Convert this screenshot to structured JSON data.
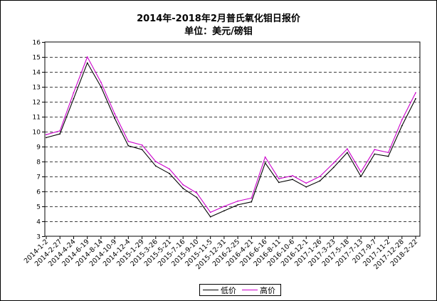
{
  "chart_data": {
    "type": "line",
    "title": "2014年-2018年2月普氏氧化钼日报价",
    "subtitle": "单位：美元/磅钼",
    "ylim": [
      3,
      16
    ],
    "yticks": [
      3,
      4,
      5,
      6,
      7,
      8,
      9,
      10,
      11,
      12,
      13,
      14,
      15,
      16
    ],
    "grid": "horizontal-dashed",
    "legend_position": "bottom-center",
    "x": [
      "2014-1-2",
      "2014-2-27",
      "2014-4-24",
      "2014-6-19",
      "2014-8-14",
      "2014-10-9",
      "2014-12-4",
      "2015-1-29",
      "2015-3-26",
      "2015-5-21",
      "2015-7-16",
      "2015-9-10",
      "2015-11-5",
      "2015-12-31",
      "2016-2-25",
      "2016-4-21",
      "2016-6-16",
      "2016-8-11",
      "2016-10-6",
      "2016-12-1",
      "2017-1-26",
      "2017-3-23",
      "2017-5-18",
      "2017-7-13",
      "2017-9-7",
      "2017-11-2",
      "2017-12-28",
      "2018-2-22"
    ],
    "series": [
      {
        "name": "低价",
        "color": "#000000",
        "values": [
          9.6,
          9.85,
          12.2,
          14.6,
          13.0,
          10.9,
          9.05,
          8.8,
          7.7,
          7.2,
          6.2,
          5.6,
          4.3,
          4.7,
          5.1,
          5.3,
          7.9,
          6.6,
          6.8,
          6.3,
          6.7,
          7.6,
          8.6,
          7.0,
          8.5,
          8.35,
          10.4,
          12.2
        ]
      },
      {
        "name": "高价",
        "color": "#cc00cc",
        "values": [
          9.8,
          10.05,
          12.6,
          15.0,
          13.3,
          11.2,
          9.35,
          9.1,
          8.0,
          7.5,
          6.45,
          5.9,
          4.6,
          5.0,
          5.35,
          5.55,
          8.3,
          6.85,
          7.05,
          6.55,
          7.0,
          7.9,
          8.85,
          7.3,
          8.8,
          8.6,
          10.8,
          12.6
        ]
      }
    ]
  },
  "legend": {
    "low_label": "低价",
    "high_label": "高价"
  }
}
